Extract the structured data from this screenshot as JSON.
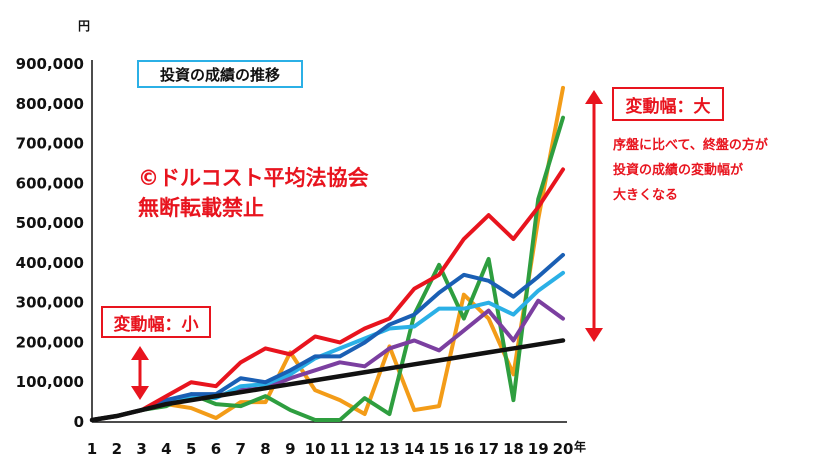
{
  "chart_data": {
    "type": "line",
    "title": "投資の成績の推移",
    "y_unit": "円",
    "x_unit": "年",
    "x": [
      1,
      2,
      3,
      4,
      5,
      6,
      7,
      8,
      9,
      10,
      11,
      12,
      13,
      14,
      15,
      16,
      17,
      18,
      19,
      20
    ],
    "ylim": [
      0,
      900000
    ],
    "y_ticks": [
      "0",
      "100,000",
      "200,000",
      "300,000",
      "400,000",
      "500,000",
      "600,000",
      "700,000",
      "800,000",
      "900,000"
    ],
    "y_tick_values": [
      0,
      100000,
      200000,
      300000,
      400000,
      500000,
      600000,
      700000,
      800000,
      900000
    ],
    "series": [
      {
        "color": "#111111",
        "values": [
          5000,
          15000,
          30000,
          45000,
          55000,
          65000,
          75000,
          85000,
          95000,
          105000,
          115000,
          125000,
          135000,
          145000,
          155000,
          165000,
          175000,
          185000,
          195000,
          205000
        ]
      },
      {
        "color": "#e8141e",
        "values": [
          5000,
          15000,
          30000,
          65000,
          100000,
          90000,
          150000,
          185000,
          170000,
          215000,
          200000,
          235000,
          260000,
          335000,
          370000,
          460000,
          520000,
          460000,
          540000,
          635000
        ]
      },
      {
        "color": "#1a5fb4",
        "values": [
          5000,
          15000,
          30000,
          55000,
          70000,
          70000,
          110000,
          100000,
          130000,
          165000,
          165000,
          200000,
          245000,
          270000,
          325000,
          370000,
          355000,
          315000,
          365000,
          420000
        ]
      },
      {
        "color": "#2bb0e6",
        "values": [
          5000,
          15000,
          30000,
          55000,
          65000,
          60000,
          90000,
          95000,
          120000,
          160000,
          185000,
          210000,
          235000,
          240000,
          285000,
          285000,
          300000,
          270000,
          330000,
          375000
        ]
      },
      {
        "color": "#7b3fa0",
        "values": [
          5000,
          15000,
          30000,
          50000,
          60000,
          65000,
          80000,
          85000,
          110000,
          130000,
          150000,
          140000,
          185000,
          205000,
          180000,
          230000,
          280000,
          205000,
          305000,
          260000
        ]
      },
      {
        "color": "#f39c18",
        "values": [
          5000,
          15000,
          30000,
          45000,
          35000,
          10000,
          50000,
          50000,
          175000,
          80000,
          55000,
          20000,
          190000,
          30000,
          40000,
          320000,
          260000,
          120000,
          510000,
          840000
        ]
      },
      {
        "color": "#2e9e3f",
        "values": [
          5000,
          15000,
          30000,
          40000,
          70000,
          45000,
          40000,
          65000,
          30000,
          5000,
          5000,
          60000,
          20000,
          270000,
          395000,
          260000,
          410000,
          55000,
          560000,
          765000
        ]
      }
    ]
  },
  "annotations": {
    "watermark_line1": "©ドルコスト平均法協会",
    "watermark_line2": "無断転載禁止",
    "label_large": "変動幅：大",
    "label_small": "変動幅：小",
    "note_lines": [
      "序盤に比べて、終盤の方が",
      "投資の成績の変動幅が",
      "大きくなる"
    ],
    "accent_color": "#e8141e"
  }
}
